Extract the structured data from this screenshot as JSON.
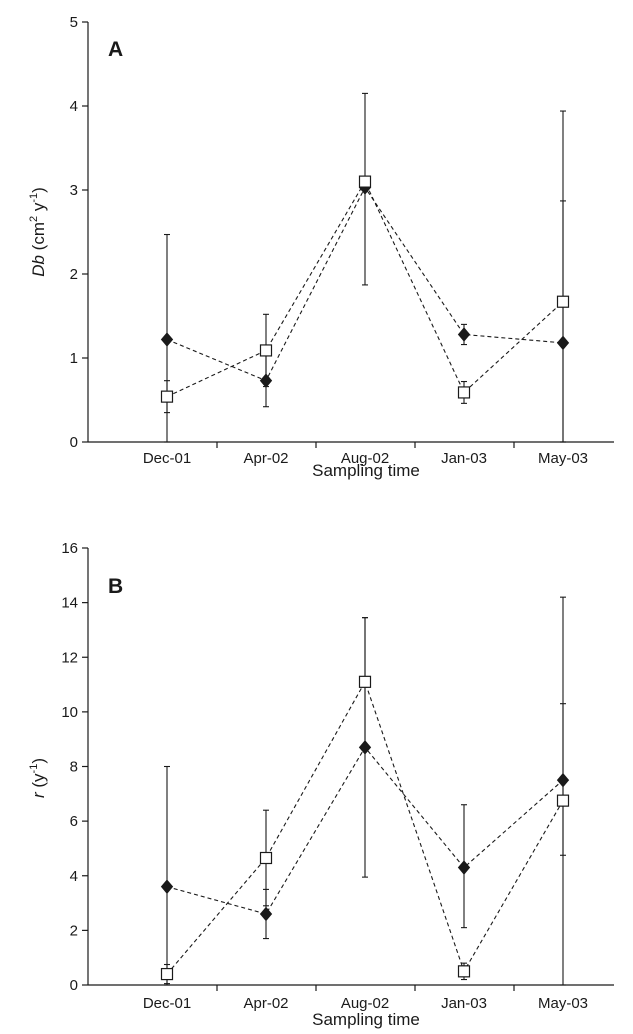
{
  "chart_data": [
    {
      "type": "line",
      "panel_label": "A",
      "xlabel": "Sampling time",
      "ylabel_italic": "Db",
      "ylabel_rest": " (cm",
      "ylabel_sup1": "2",
      "ylabel_mid": " y",
      "ylabel_sup2": "-1",
      "ylabel_end": ")",
      "categories": [
        "Dec-01",
        "Apr-02",
        "Aug-02",
        "Jan-03",
        "May-03"
      ],
      "ylim": [
        0,
        5
      ],
      "yticks": [
        0,
        1,
        2,
        3,
        4,
        5
      ],
      "series": [
        {
          "marker": "filled-diamond",
          "color": "#1a1a1a",
          "values": [
            1.22,
            0.73,
            3.03,
            1.28,
            1.18
          ],
          "err_low": [
            0.0,
            0.42,
            1.87,
            1.16,
            0.0
          ],
          "err_high": [
            2.47,
            1.04,
            4.15,
            1.4,
            2.87
          ]
        },
        {
          "marker": "open-square",
          "color": "#1a1a1a",
          "values": [
            0.54,
            1.09,
            3.1,
            0.59,
            1.67
          ],
          "err_low": [
            0.35,
            0.66,
            3.1,
            0.46,
            0.0
          ],
          "err_high": [
            0.73,
            1.52,
            3.1,
            0.72,
            3.94
          ]
        }
      ]
    },
    {
      "type": "line",
      "panel_label": "B",
      "xlabel": "Sampling time",
      "ylabel_italic": "r",
      "ylabel_rest": " (y",
      "ylabel_sup1": "-1",
      "ylabel_mid": ")",
      "ylabel_sup2": "",
      "ylabel_end": "",
      "categories": [
        "Dec-01",
        "Apr-02",
        "Aug-02",
        "Jan-03",
        "May-03"
      ],
      "ylim": [
        0,
        16
      ],
      "yticks": [
        0,
        2,
        4,
        6,
        8,
        10,
        12,
        14,
        16
      ],
      "series": [
        {
          "marker": "filled-diamond",
          "color": "#1a1a1a",
          "values": [
            3.6,
            2.6,
            8.7,
            4.3,
            7.5
          ],
          "err_low": [
            0.0,
            1.7,
            3.95,
            2.1,
            4.75
          ],
          "err_high": [
            8.0,
            3.5,
            13.45,
            6.6,
            10.3
          ]
        },
        {
          "marker": "open-square",
          "color": "#1a1a1a",
          "values": [
            0.4,
            4.65,
            11.1,
            0.5,
            6.75
          ],
          "err_low": [
            0.05,
            2.9,
            8.7,
            0.2,
            0.0
          ],
          "err_high": [
            0.75,
            6.4,
            13.45,
            0.8,
            14.2
          ]
        }
      ]
    }
  ]
}
